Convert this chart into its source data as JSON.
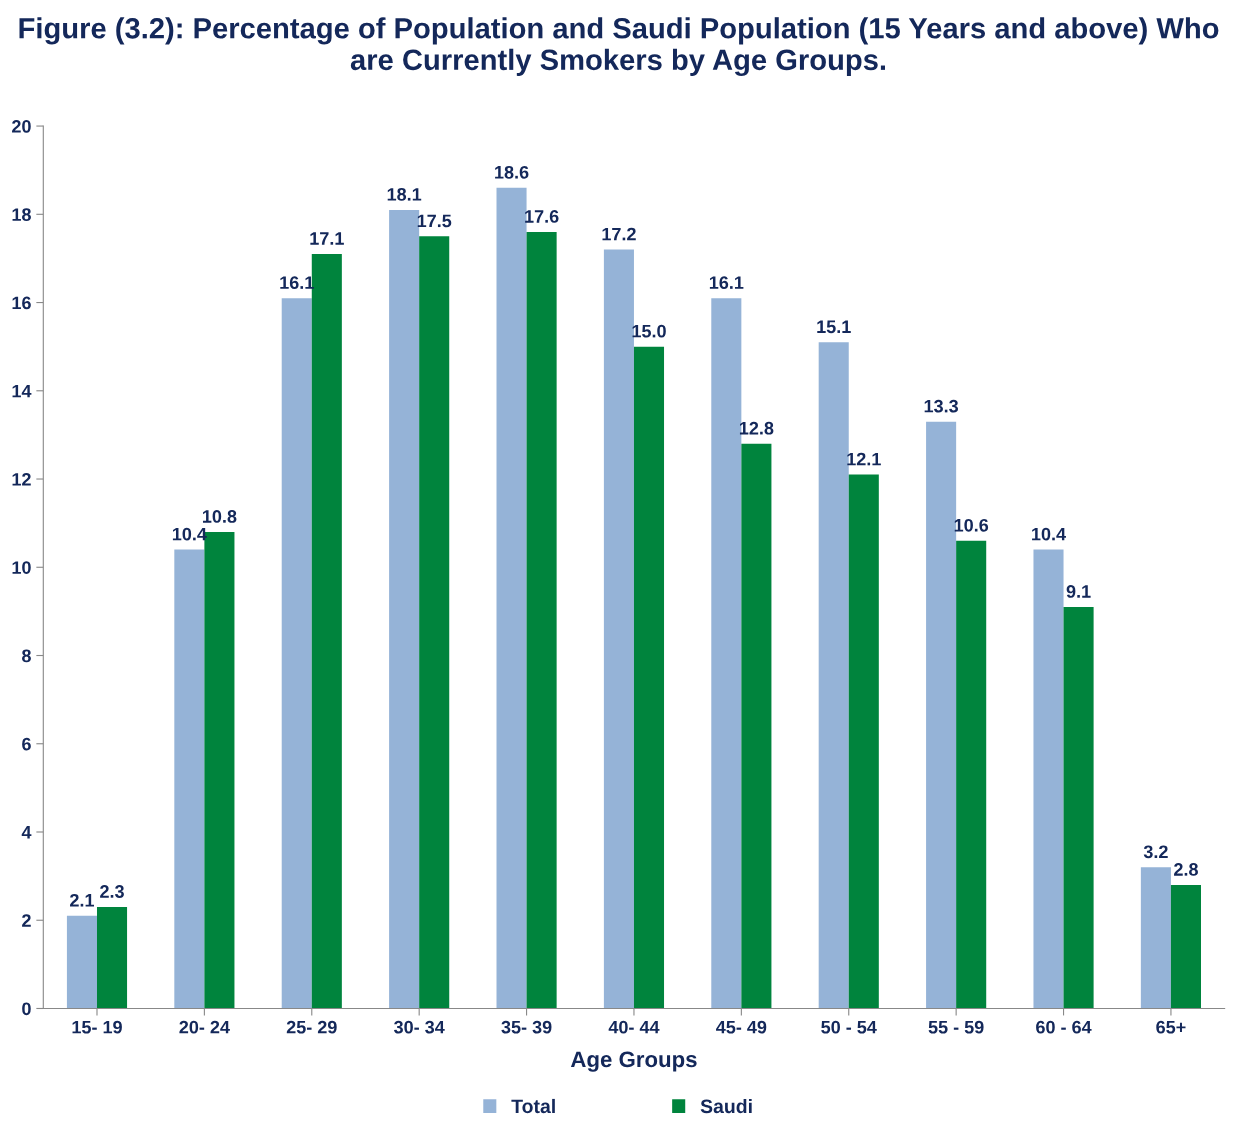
{
  "chart_data": {
    "type": "bar",
    "title": "Figure (3.2): Percentage of Population and Saudi Population (15 Years and above) Who are Currently Smokers by Age Groups.",
    "xlabel": "Age Groups",
    "categories": [
      "15- 19",
      "20- 24",
      "25- 29",
      "30- 34",
      "35- 39",
      "40- 44",
      "45- 49",
      "50 - 54",
      "55 - 59",
      "60 - 64",
      "65+"
    ],
    "series": [
      {
        "name": "Total",
        "color": "#95b3d7",
        "values": [
          2.1,
          10.4,
          16.1,
          18.1,
          18.6,
          17.2,
          16.1,
          15.1,
          13.3,
          10.4,
          3.2
        ],
        "value_labels": [
          "2.1",
          "10.4",
          "16.1",
          "18.1",
          "18.6",
          "17.2",
          "16.1",
          "15.1",
          "13.3",
          "10.4",
          "3.2"
        ]
      },
      {
        "name": "Saudi",
        "color": "#00843d",
        "values": [
          2.3,
          10.8,
          17.1,
          17.5,
          17.6,
          15.0,
          12.8,
          12.1,
          10.6,
          9.1,
          2.8
        ],
        "value_labels": [
          "2.3",
          "10.8",
          "17.1",
          "17.5",
          "17.6",
          "15.0",
          "12.8",
          "12.1",
          "10.6",
          "9.1",
          "2.8"
        ]
      }
    ],
    "ylim": [
      0,
      20
    ],
    "yticks": [
      0,
      2,
      4,
      6,
      8,
      10,
      12,
      14,
      16,
      18,
      20
    ],
    "grid": false,
    "legend": "bottom"
  }
}
